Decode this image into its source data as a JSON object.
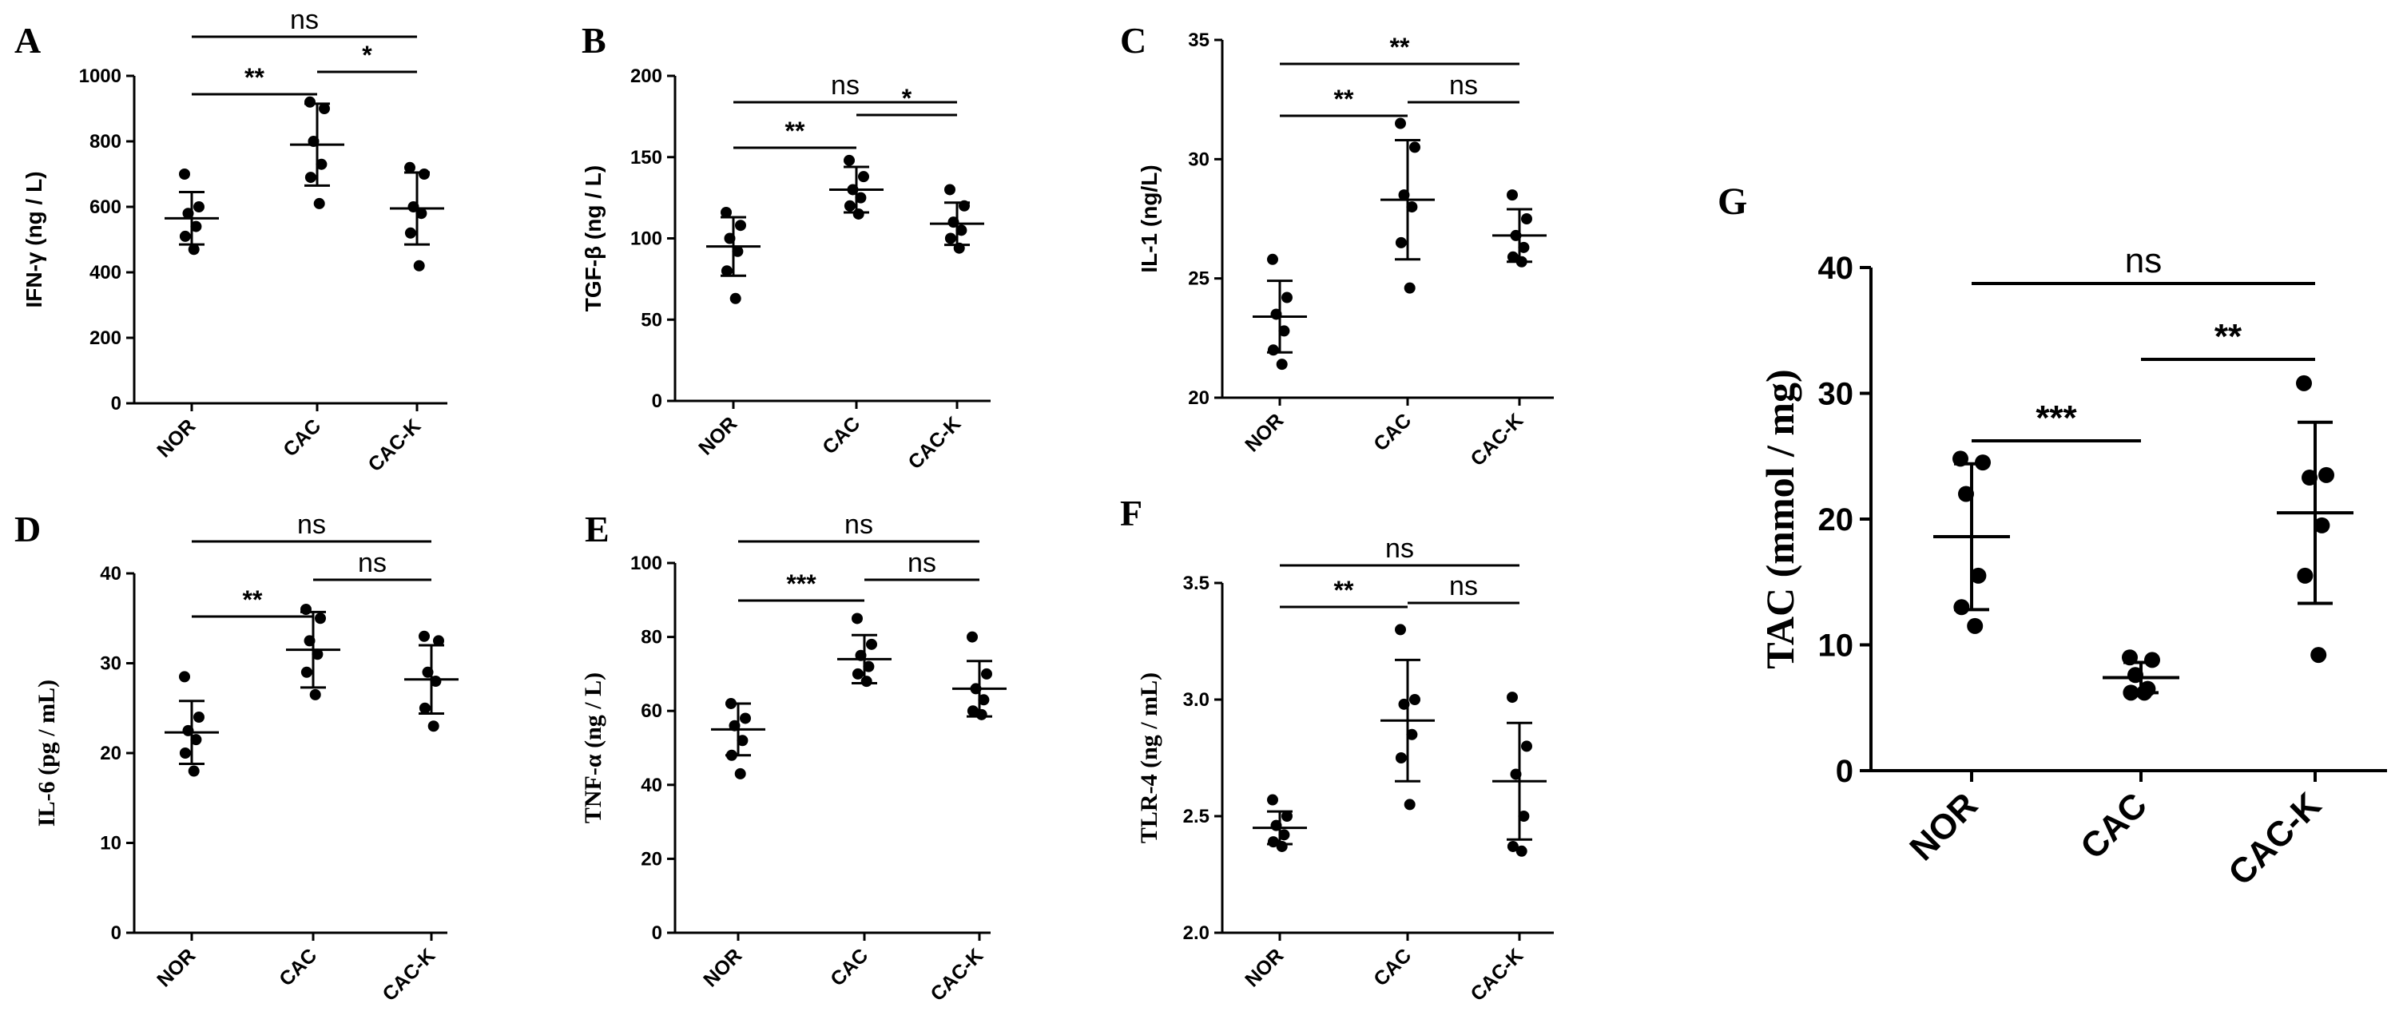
{
  "chart_data": [
    {
      "id": "A",
      "type": "scatter",
      "panel_label": "A",
      "ylabel": "IFN-γ (ng / L)",
      "ylim": [
        0,
        1000
      ],
      "yticks": [
        0,
        200,
        400,
        600,
        800,
        1000
      ],
      "categories": [
        "NOR",
        "CAC",
        "CAC-K"
      ],
      "points": [
        [
          700,
          600,
          580,
          540,
          510,
          470
        ],
        [
          920,
          900,
          800,
          730,
          690,
          610
        ],
        [
          720,
          700,
          600,
          580,
          520,
          420
        ]
      ],
      "mean": [
        565,
        790,
        595
      ],
      "sd": [
        80,
        125,
        110
      ],
      "comparisons": [
        {
          "from": 0,
          "to": 2,
          "label": "ns",
          "level": 1
        },
        {
          "from": 0,
          "to": 1,
          "label": "**",
          "level": 0
        },
        {
          "from": 1,
          "to": 2,
          "label": "*",
          "level": 0
        }
      ]
    },
    {
      "id": "B",
      "type": "scatter",
      "panel_label": "B",
      "ylabel": "TGF-β (ng / L)",
      "ylim": [
        0,
        200
      ],
      "yticks": [
        0,
        50,
        100,
        150,
        200
      ],
      "categories": [
        "NOR",
        "CAC",
        "CAC-K"
      ],
      "points": [
        [
          116,
          108,
          100,
          92,
          80,
          63
        ],
        [
          148,
          138,
          130,
          125,
          120,
          115
        ],
        [
          130,
          120,
          110,
          105,
          100,
          94
        ]
      ],
      "mean": [
        95,
        130,
        109
      ],
      "sd": [
        18,
        14,
        13
      ],
      "comparisons": [
        {
          "from": 0,
          "to": 2,
          "label": "ns",
          "level": 1
        },
        {
          "from": 0,
          "to": 1,
          "label": "**",
          "level": 0
        },
        {
          "from": 1,
          "to": 2,
          "label": "*",
          "level": 0
        }
      ]
    },
    {
      "id": "C",
      "type": "scatter",
      "panel_label": "C",
      "ylabel": "IL-1 (ng/L)",
      "ylim": [
        20,
        35
      ],
      "yticks": [
        20,
        25,
        30,
        35
      ],
      "categories": [
        "NOR",
        "CAC",
        "CAC-K"
      ],
      "points": [
        [
          25.8,
          24.2,
          23.5,
          22.8,
          22.0,
          21.4
        ],
        [
          31.5,
          30.5,
          28.5,
          28.0,
          26.5,
          24.6
        ],
        [
          28.5,
          27.5,
          26.8,
          26.3,
          25.9,
          25.7
        ]
      ],
      "mean": [
        23.4,
        28.3,
        26.8
      ],
      "sd": [
        1.5,
        2.5,
        1.1
      ],
      "comparisons": [
        {
          "from": 0,
          "to": 2,
          "label": "**",
          "level": 1
        },
        {
          "from": 0,
          "to": 1,
          "label": "**",
          "level": 0
        },
        {
          "from": 1,
          "to": 2,
          "label": "ns",
          "level": 0
        }
      ]
    },
    {
      "id": "D",
      "type": "scatter",
      "panel_label": "D",
      "ylabel": "IL-6 (pg / mL)",
      "ylim": [
        0,
        40
      ],
      "yticks": [
        0,
        10,
        20,
        30,
        40
      ],
      "categories": [
        "NOR",
        "CAC",
        "CAC-K"
      ],
      "points": [
        [
          28.5,
          24.0,
          22.5,
          21.5,
          20.0,
          18.0
        ],
        [
          36.0,
          35.0,
          32.5,
          31.0,
          29.0,
          26.5
        ],
        [
          33.0,
          32.5,
          29.0,
          28.0,
          25.0,
          23.0
        ]
      ],
      "mean": [
        22.3,
        31.5,
        28.2
      ],
      "sd": [
        3.5,
        4.2,
        3.8
      ],
      "comparisons": [
        {
          "from": 0,
          "to": 2,
          "label": "ns",
          "level": 1
        },
        {
          "from": 0,
          "to": 1,
          "label": "**",
          "level": 0
        },
        {
          "from": 1,
          "to": 2,
          "label": "ns",
          "level": 0
        }
      ]
    },
    {
      "id": "E",
      "type": "scatter",
      "panel_label": "E",
      "ylabel": "TNF-α (ng / L)",
      "ylim": [
        0,
        100
      ],
      "yticks": [
        0,
        20,
        40,
        60,
        80,
        100
      ],
      "categories": [
        "NOR",
        "CAC",
        "CAC-K"
      ],
      "points": [
        [
          62,
          58,
          56,
          52,
          48,
          43
        ],
        [
          85,
          78,
          75,
          72,
          70,
          68
        ],
        [
          80,
          70,
          66,
          63,
          60,
          59
        ]
      ],
      "mean": [
        55,
        74,
        66
      ],
      "sd": [
        7,
        6.5,
        7.5
      ],
      "comparisons": [
        {
          "from": 0,
          "to": 2,
          "label": "ns",
          "level": 1
        },
        {
          "from": 0,
          "to": 1,
          "label": "***",
          "level": 0
        },
        {
          "from": 1,
          "to": 2,
          "label": "ns",
          "level": 0
        }
      ]
    },
    {
      "id": "F",
      "type": "scatter",
      "panel_label": "F",
      "ylabel": "TLR-4 (ng / mL)",
      "ylim": [
        2.0,
        3.5
      ],
      "yticks": [
        2.0,
        2.5,
        3.0,
        3.5
      ],
      "yticklabels": [
        "2.0",
        "2.5",
        "3.0",
        "3.5"
      ],
      "categories": [
        "NOR",
        "CAC",
        "CAC-K"
      ],
      "points": [
        [
          2.57,
          2.5,
          2.46,
          2.42,
          2.39,
          2.37
        ],
        [
          3.3,
          3.0,
          2.98,
          2.85,
          2.75,
          2.55
        ],
        [
          3.01,
          2.8,
          2.68,
          2.5,
          2.37,
          2.35
        ]
      ],
      "mean": [
        2.45,
        2.91,
        2.65
      ],
      "sd": [
        0.07,
        0.26,
        0.25
      ],
      "comparisons": [
        {
          "from": 0,
          "to": 2,
          "label": "ns",
          "level": 1
        },
        {
          "from": 0,
          "to": 1,
          "label": "**",
          "level": 0
        },
        {
          "from": 1,
          "to": 2,
          "label": "ns",
          "level": 0
        }
      ]
    },
    {
      "id": "G",
      "type": "scatter",
      "panel_label": "G",
      "ylabel": "TAC (mmol / mg)",
      "ylim": [
        0,
        40
      ],
      "yticks": [
        0,
        10,
        20,
        30,
        40
      ],
      "categories": [
        "NOR",
        "CAC",
        "CAC-K"
      ],
      "points": [
        [
          24.8,
          24.5,
          22.0,
          15.5,
          13.0,
          11.5
        ],
        [
          9.0,
          8.8,
          7.6,
          6.5,
          6.2,
          6.2
        ],
        [
          30.8,
          23.5,
          23.3,
          19.5,
          15.5,
          9.2
        ]
      ],
      "mean": [
        18.6,
        7.4,
        20.5
      ],
      "sd": [
        5.8,
        1.2,
        7.2
      ],
      "comparisons": [
        {
          "from": 0,
          "to": 2,
          "label": "ns",
          "level": 1
        },
        {
          "from": 0,
          "to": 1,
          "label": "***",
          "level": 0
        },
        {
          "from": 1,
          "to": 2,
          "label": "**",
          "level": 0
        }
      ]
    }
  ]
}
